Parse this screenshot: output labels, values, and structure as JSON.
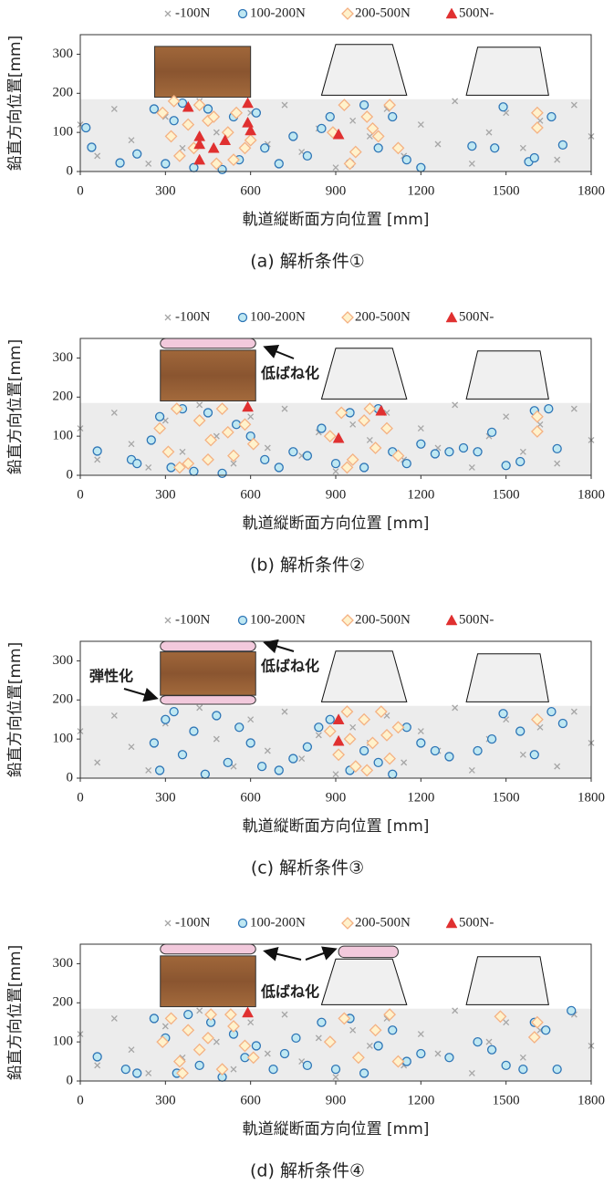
{
  "chart_data": [
    {
      "type": "scatter",
      "caption": "(a) 解析条件①",
      "xlabel": "軌道縦断面方向位置 [mm]",
      "ylabel": "鉛直方向位置[mm]",
      "xlim": [
        0,
        1800
      ],
      "ylim": [
        0,
        350
      ],
      "xticks": [
        0,
        300,
        600,
        900,
        1200,
        1500,
        1800
      ],
      "yticks": [
        0,
        100,
        200,
        300
      ],
      "annotations": [],
      "series": [
        {
          "name": "-100N",
          "marker": "x",
          "color": "#a6a6a6",
          "fill": "none",
          "x": [
            0,
            60,
            120,
            180,
            240,
            300,
            360,
            420,
            480,
            540,
            600,
            660,
            720,
            780,
            840,
            900,
            960,
            1020,
            1080,
            1140,
            1200,
            1260,
            1320,
            1380,
            1440,
            1500,
            1560,
            1620,
            1680,
            1740,
            1800
          ],
          "values": [
            120,
            40,
            160,
            80,
            20,
            140,
            60,
            180,
            100,
            30,
            150,
            70,
            170,
            50,
            110,
            10,
            130,
            90,
            160,
            40,
            120,
            70,
            180,
            20,
            100,
            150,
            60,
            130,
            30,
            170,
            90
          ]
        },
        {
          "name": "100-200N",
          "marker": "circle",
          "color": "#2e75b6",
          "fill": "#bfe8f2",
          "x": [
            20,
            40,
            140,
            200,
            260,
            300,
            330,
            360,
            400,
            450,
            500,
            540,
            560,
            620,
            650,
            700,
            750,
            800,
            850,
            880,
            950,
            1000,
            1050,
            1100,
            1150,
            1200,
            1380,
            1460,
            1490,
            1580,
            1600,
            1660,
            1700
          ],
          "values": [
            112,
            62,
            22,
            45,
            160,
            20,
            130,
            175,
            10,
            160,
            5,
            140,
            30,
            150,
            60,
            20,
            90,
            40,
            110,
            140,
            20,
            170,
            60,
            140,
            30,
            10,
            65,
            60,
            165,
            25,
            35,
            140,
            68
          ]
        },
        {
          "name": "200-500N",
          "marker": "diamond",
          "color": "#f4b183",
          "fill": "#fff2cc",
          "x": [
            290,
            320,
            350,
            380,
            420,
            450,
            480,
            520,
            550,
            580,
            600,
            330,
            400,
            470,
            540,
            890,
            930,
            970,
            1010,
            1050,
            1090,
            1120,
            950,
            1030,
            1610,
            1610
          ],
          "values": [
            150,
            90,
            40,
            120,
            170,
            130,
            20,
            100,
            150,
            60,
            80,
            180,
            60,
            140,
            30,
            100,
            170,
            50,
            140,
            90,
            170,
            60,
            20,
            110,
            150,
            112
          ]
        },
        {
          "name": "500N-",
          "marker": "triangle",
          "color": "#e03030",
          "fill": "#e03030",
          "x": [
            380,
            590,
            590,
            600,
            420,
            420,
            470,
            510,
            420,
            910
          ],
          "values": [
            165,
            175,
            125,
            105,
            90,
            70,
            60,
            80,
            30,
            95
          ]
        }
      ]
    },
    {
      "type": "scatter",
      "caption": "(b) 解析条件②",
      "xlabel": "軌道縦断面方向位置 [mm]",
      "ylabel": "鉛直方向位置[mm]",
      "xlim": [
        0,
        1800
      ],
      "ylim": [
        0,
        350
      ],
      "xticks": [
        0,
        300,
        600,
        900,
        1200,
        1500,
        1800
      ],
      "yticks": [
        0,
        100,
        200,
        300
      ],
      "annotations": [
        "低ばね化"
      ],
      "series": [
        {
          "name": "-100N",
          "marker": "x",
          "color": "#a6a6a6",
          "fill": "none",
          "x": [
            0,
            60,
            120,
            180,
            240,
            300,
            360,
            420,
            480,
            540,
            600,
            660,
            720,
            780,
            840,
            900,
            960,
            1020,
            1080,
            1140,
            1200,
            1260,
            1320,
            1380,
            1440,
            1500,
            1560,
            1620,
            1680,
            1740,
            1800
          ],
          "values": [
            120,
            40,
            160,
            80,
            20,
            140,
            60,
            180,
            100,
            30,
            150,
            70,
            170,
            50,
            110,
            10,
            130,
            90,
            160,
            40,
            120,
            70,
            180,
            20,
            100,
            150,
            60,
            130,
            30,
            170,
            90
          ]
        },
        {
          "name": "100-200N",
          "marker": "circle",
          "color": "#2e75b6",
          "fill": "#bfe8f2",
          "x": [
            60,
            180,
            200,
            250,
            280,
            320,
            360,
            400,
            450,
            500,
            550,
            600,
            650,
            700,
            750,
            800,
            850,
            900,
            950,
            1000,
            1050,
            1100,
            1150,
            1200,
            1250,
            1300,
            1350,
            1400,
            1450,
            1500,
            1550,
            1600,
            1650,
            1680
          ],
          "values": [
            62,
            40,
            30,
            90,
            150,
            20,
            170,
            10,
            160,
            5,
            130,
            100,
            40,
            20,
            60,
            50,
            120,
            30,
            160,
            20,
            170,
            60,
            30,
            80,
            55,
            60,
            70,
            60,
            110,
            25,
            35,
            165,
            170,
            68
          ]
        },
        {
          "name": "200-500N",
          "marker": "diamond",
          "color": "#f4b183",
          "fill": "#fff2cc",
          "x": [
            280,
            310,
            340,
            380,
            420,
            460,
            500,
            540,
            580,
            610,
            350,
            450,
            520,
            880,
            920,
            960,
            1000,
            1040,
            1080,
            1120,
            940,
            1020,
            1610,
            1610
          ],
          "values": [
            120,
            60,
            170,
            30,
            140,
            90,
            170,
            50,
            130,
            80,
            20,
            40,
            110,
            100,
            160,
            40,
            140,
            70,
            120,
            50,
            20,
            170,
            150,
            112
          ]
        },
        {
          "name": "500N-",
          "marker": "triangle",
          "color": "#e03030",
          "fill": "#e03030",
          "x": [
            590,
            910,
            1060
          ],
          "values": [
            175,
            95,
            165
          ]
        }
      ]
    },
    {
      "type": "scatter",
      "caption": "(c) 解析条件③",
      "xlabel": "軌道縦断面方向位置 [mm]",
      "ylabel": "鉛直方向位置[mm]",
      "xlim": [
        0,
        1800
      ],
      "ylim": [
        0,
        350
      ],
      "xticks": [
        0,
        300,
        600,
        900,
        1200,
        1500,
        1800
      ],
      "yticks": [
        0,
        100,
        200,
        300
      ],
      "annotations": [
        "弾性化",
        "低ばね化"
      ],
      "series": [
        {
          "name": "-100N",
          "marker": "x",
          "color": "#a6a6a6",
          "fill": "none",
          "x": [
            0,
            60,
            120,
            180,
            240,
            300,
            360,
            420,
            480,
            540,
            600,
            660,
            720,
            780,
            840,
            900,
            960,
            1020,
            1080,
            1140,
            1200,
            1260,
            1320,
            1380,
            1440,
            1500,
            1560,
            1620,
            1680,
            1740,
            1800
          ],
          "values": [
            120,
            40,
            160,
            80,
            20,
            140,
            60,
            180,
            100,
            30,
            150,
            70,
            170,
            50,
            110,
            10,
            130,
            90,
            160,
            40,
            120,
            70,
            180,
            20,
            100,
            150,
            60,
            130,
            30,
            170,
            90
          ]
        },
        {
          "name": "100-200N",
          "marker": "circle",
          "color": "#2e75b6",
          "fill": "#bfe8f2",
          "x": [
            260,
            280,
            300,
            330,
            360,
            400,
            440,
            480,
            520,
            560,
            600,
            640,
            700,
            750,
            800,
            840,
            880,
            950,
            1000,
            1050,
            1100,
            1150,
            1200,
            1250,
            1300,
            1400,
            1450,
            1490,
            1550,
            1600,
            1660,
            1700
          ],
          "values": [
            90,
            20,
            150,
            170,
            60,
            120,
            10,
            160,
            40,
            130,
            90,
            30,
            20,
            50,
            80,
            130,
            150,
            20,
            70,
            40,
            10,
            130,
            90,
            70,
            55,
            70,
            100,
            165,
            120,
            60,
            170,
            140
          ]
        },
        {
          "name": "200-500N",
          "marker": "diamond",
          "color": "#f4b183",
          "fill": "#fff2cc",
          "x": [
            880,
            910,
            940,
            970,
            1000,
            1030,
            1060,
            1090,
            1120,
            950,
            1010,
            1080,
            1610
          ],
          "values": [
            120,
            60,
            170,
            30,
            150,
            90,
            170,
            50,
            130,
            100,
            20,
            110,
            150
          ]
        },
        {
          "name": "500N-",
          "marker": "triangle",
          "color": "#e03030",
          "fill": "#e03030",
          "x": [
            910,
            910
          ],
          "values": [
            150,
            95
          ]
        }
      ]
    },
    {
      "type": "scatter",
      "caption": "(d) 解析条件④",
      "xlabel": "軌道縦断面方向位置 [mm]",
      "ylabel": "鉛直方向位置[mm]",
      "xlim": [
        0,
        1800
      ],
      "ylim": [
        0,
        350
      ],
      "xticks": [
        0,
        300,
        600,
        900,
        1200,
        1500,
        1800
      ],
      "yticks": [
        0,
        100,
        200,
        300
      ],
      "annotations": [
        "低ばね化"
      ],
      "series": [
        {
          "name": "-100N",
          "marker": "x",
          "color": "#a6a6a6",
          "fill": "none",
          "x": [
            0,
            60,
            120,
            180,
            240,
            300,
            360,
            420,
            480,
            540,
            600,
            660,
            720,
            780,
            840,
            900,
            960,
            1020,
            1080,
            1140,
            1200,
            1260,
            1320,
            1380,
            1440,
            1500,
            1560,
            1620,
            1680,
            1740,
            1800
          ],
          "values": [
            120,
            40,
            160,
            80,
            20,
            140,
            60,
            180,
            100,
            30,
            150,
            70,
            170,
            50,
            110,
            10,
            130,
            90,
            160,
            40,
            120,
            70,
            180,
            20,
            100,
            150,
            60,
            130,
            30,
            170,
            90
          ]
        },
        {
          "name": "100-200N",
          "marker": "circle",
          "color": "#2e75b6",
          "fill": "#bfe8f2",
          "x": [
            60,
            160,
            200,
            260,
            300,
            340,
            380,
            420,
            460,
            500,
            540,
            580,
            620,
            680,
            720,
            760,
            800,
            850,
            900,
            950,
            1000,
            1050,
            1100,
            1150,
            1200,
            1300,
            1400,
            1450,
            1500,
            1560,
            1600,
            1640,
            1680,
            1730
          ],
          "values": [
            62,
            30,
            20,
            160,
            110,
            20,
            170,
            40,
            150,
            10,
            120,
            60,
            90,
            30,
            70,
            110,
            40,
            150,
            30,
            160,
            20,
            90,
            130,
            50,
            70,
            60,
            100,
            80,
            40,
            30,
            150,
            130,
            30,
            180
          ]
        },
        {
          "name": "200-500N",
          "marker": "diamond",
          "color": "#f4b183",
          "fill": "#fff2cc",
          "x": [
            290,
            320,
            350,
            380,
            420,
            460,
            500,
            540,
            580,
            610,
            360,
            450,
            530,
            880,
            930,
            980,
            1040,
            1090,
            1120,
            1480,
            1600,
            1610
          ],
          "values": [
            100,
            160,
            50,
            130,
            80,
            170,
            30,
            140,
            90,
            60,
            20,
            110,
            170,
            100,
            160,
            60,
            130,
            170,
            50,
            165,
            112,
            150
          ]
        },
        {
          "name": "500N-",
          "marker": "triangle",
          "color": "#e03030",
          "fill": "#e03030",
          "x": [
            590
          ],
          "values": [
            175
          ]
        }
      ]
    }
  ]
}
